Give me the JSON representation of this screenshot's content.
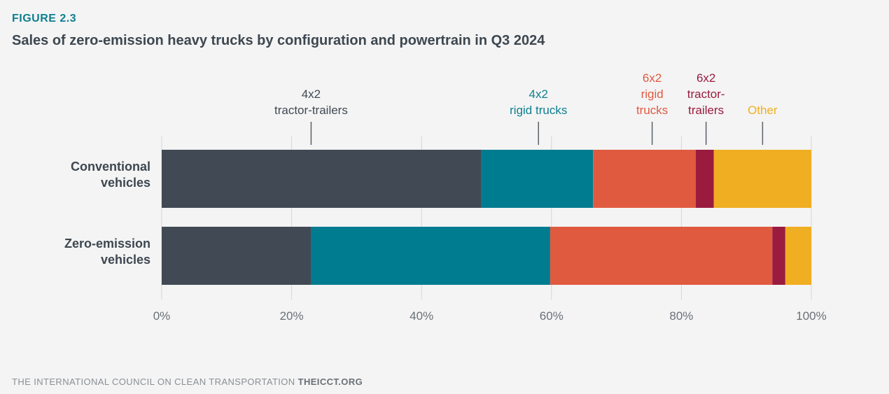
{
  "figure_label": "FIGURE 2.3",
  "title": "Sales of zero-emission heavy trucks by configuration and powertrain in Q3 2024",
  "footer": {
    "org": "THE INTERNATIONAL COUNCIL ON CLEAN TRANSPORTATION",
    "site": "THEICCT.ORG"
  },
  "chart_data": {
    "type": "bar",
    "orientation": "horizontal",
    "stacked": true,
    "categories": [
      "Conventional vehicles",
      "Zero-emission vehicles"
    ],
    "category_lines": [
      [
        "Conventional",
        "vehicles"
      ],
      [
        "Zero-emission",
        "vehicles"
      ]
    ],
    "series": [
      {
        "name": "4x2 tractor-trailers",
        "label_lines": [
          "4x2",
          "tractor-trailers"
        ],
        "color": "#414a54",
        "label_color": "#414a54",
        "values": [
          49.2,
          23.0
        ],
        "label_anchor": 23.0
      },
      {
        "name": "4x2 rigid trucks",
        "label_lines": [
          "4x2",
          "rigid trucks"
        ],
        "color": "#007c91",
        "label_color": "#0e7f8f",
        "values": [
          17.2,
          36.8
        ],
        "label_anchor": 58.0
      },
      {
        "name": "6x2 rigid trucks",
        "label_lines": [
          "6x2",
          "rigid",
          "trucks"
        ],
        "color": "#e05a40",
        "label_color": "#e05a40",
        "values": [
          15.8,
          34.2
        ],
        "label_anchor": 75.5
      },
      {
        "name": "6x2 tractor-trailers",
        "label_lines": [
          "6x2",
          "tractor-",
          "trailers"
        ],
        "color": "#9b1b3f",
        "label_color": "#9b1b3f",
        "values": [
          2.8,
          2.0
        ],
        "label_anchor": 83.8
      },
      {
        "name": "Other",
        "label_lines": [
          "Other"
        ],
        "color": "#f0ae22",
        "label_color": "#f0ae22",
        "values": [
          15.0,
          4.0
        ],
        "label_anchor": 92.5
      }
    ],
    "xlim": [
      0,
      100
    ],
    "xticks": [
      0,
      20,
      40,
      60,
      80,
      100
    ],
    "xtick_labels": [
      "0%",
      "20%",
      "40%",
      "60%",
      "80%",
      "100%"
    ],
    "grid": true,
    "legend": "direct labels above bars"
  }
}
